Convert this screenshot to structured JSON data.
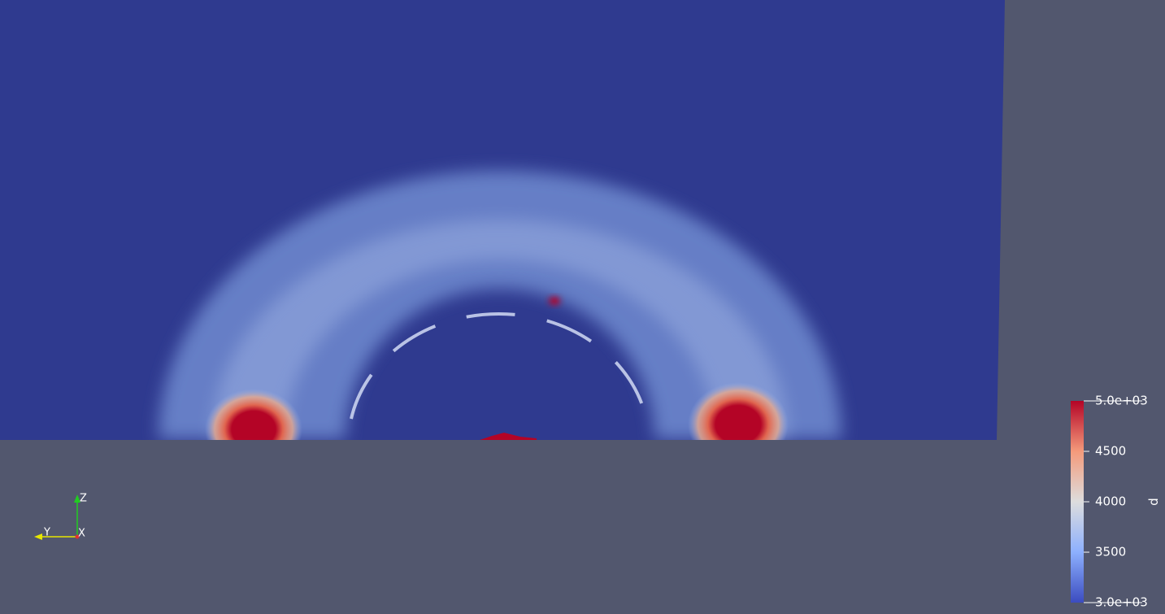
{
  "colorbar": {
    "title": "p",
    "range": [
      3000,
      5000
    ],
    "ticks": [
      {
        "value": 3000,
        "label": "3.0e+03"
      },
      3500,
      4000,
      4500,
      {
        "value": 5000,
        "label": "5.0e+03"
      }
    ]
  },
  "axes": {
    "z": "Z",
    "y": "Y",
    "x": "X"
  }
}
